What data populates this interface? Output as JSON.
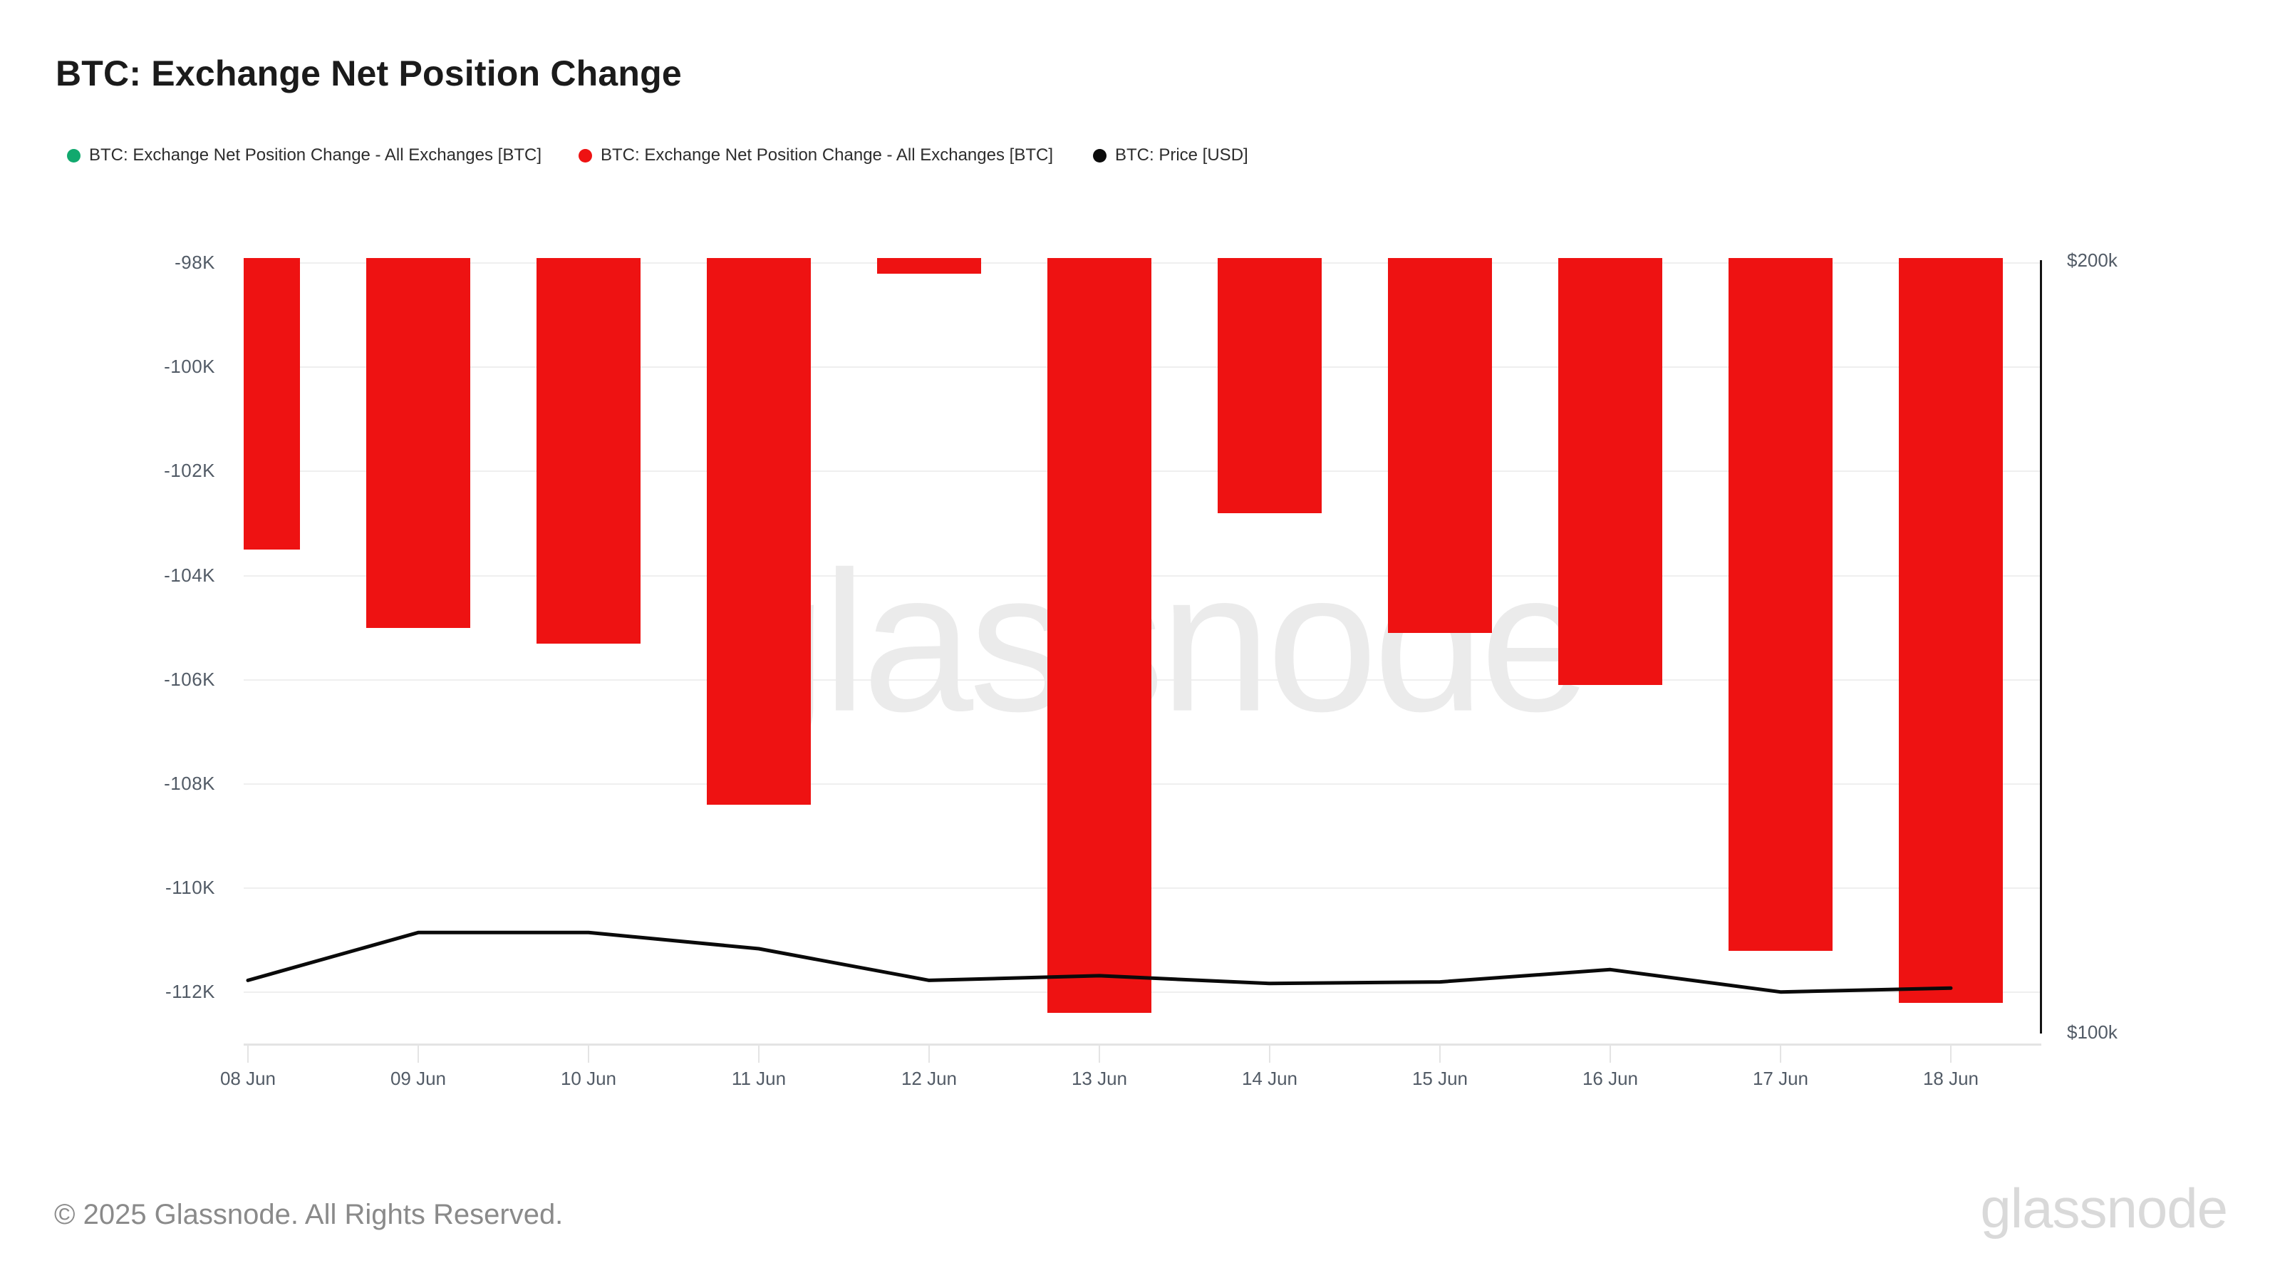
{
  "header": {
    "title": "BTC: Exchange Net Position Change"
  },
  "legend": {
    "items": [
      {
        "label": "BTC: Exchange Net Position Change - All Exchanges [BTC]",
        "color": "#11a96e"
      },
      {
        "label": "BTC: Exchange Net Position Change - All Exchanges [BTC]",
        "color": "#ee1212"
      },
      {
        "label": "BTC: Price [USD]",
        "color": "#0c0c0c"
      }
    ]
  },
  "watermark": {
    "text": "glassnode"
  },
  "footer": {
    "copyright": "© 2025 Glassnode. All Rights Reserved.",
    "brand_logo_text": "glassnode"
  },
  "chart_data": {
    "type": "bar",
    "title": "BTC: Exchange Net Position Change",
    "categories": [
      "08 Jun",
      "09 Jun",
      "10 Jun",
      "11 Jun",
      "12 Jun",
      "13 Jun",
      "14 Jun",
      "15 Jun",
      "16 Jun",
      "17 Jun",
      "18 Jun"
    ],
    "series": [
      {
        "name": "BTC: Exchange Net Position Change - All Exchanges [BTC]",
        "type": "bar",
        "y_axis": "left",
        "color": "#ee1212",
        "values": [
          -103500,
          -105000,
          -105300,
          -108400,
          -98200,
          -112400,
          -102800,
          -105100,
          -106100,
          -111200,
          -112200
        ]
      },
      {
        "name": "BTC: Price [USD]",
        "type": "line",
        "y_axis": "right",
        "color": "#0a0a0a",
        "values": [
          106700,
          112900,
          112900,
          110800,
          106700,
          107300,
          106300,
          106500,
          108100,
          105200,
          105700
        ]
      }
    ],
    "left_axis": {
      "tick_labels": [
        "-98K",
        "-100K",
        "-102K",
        "-104K",
        "-106K",
        "-108K",
        "-110K",
        "-112K"
      ],
      "tick_values": [
        -98000,
        -100000,
        -102000,
        -104000,
        -106000,
        -108000,
        -110000,
        -112000
      ],
      "domain_top": -97900,
      "domain_bottom": -113000
    },
    "right_axis": {
      "tick_labels": [
        "$200k",
        "$100k"
      ],
      "tick_values": [
        200000,
        100000
      ]
    },
    "grid": "horizontal",
    "legend_position": "top"
  }
}
